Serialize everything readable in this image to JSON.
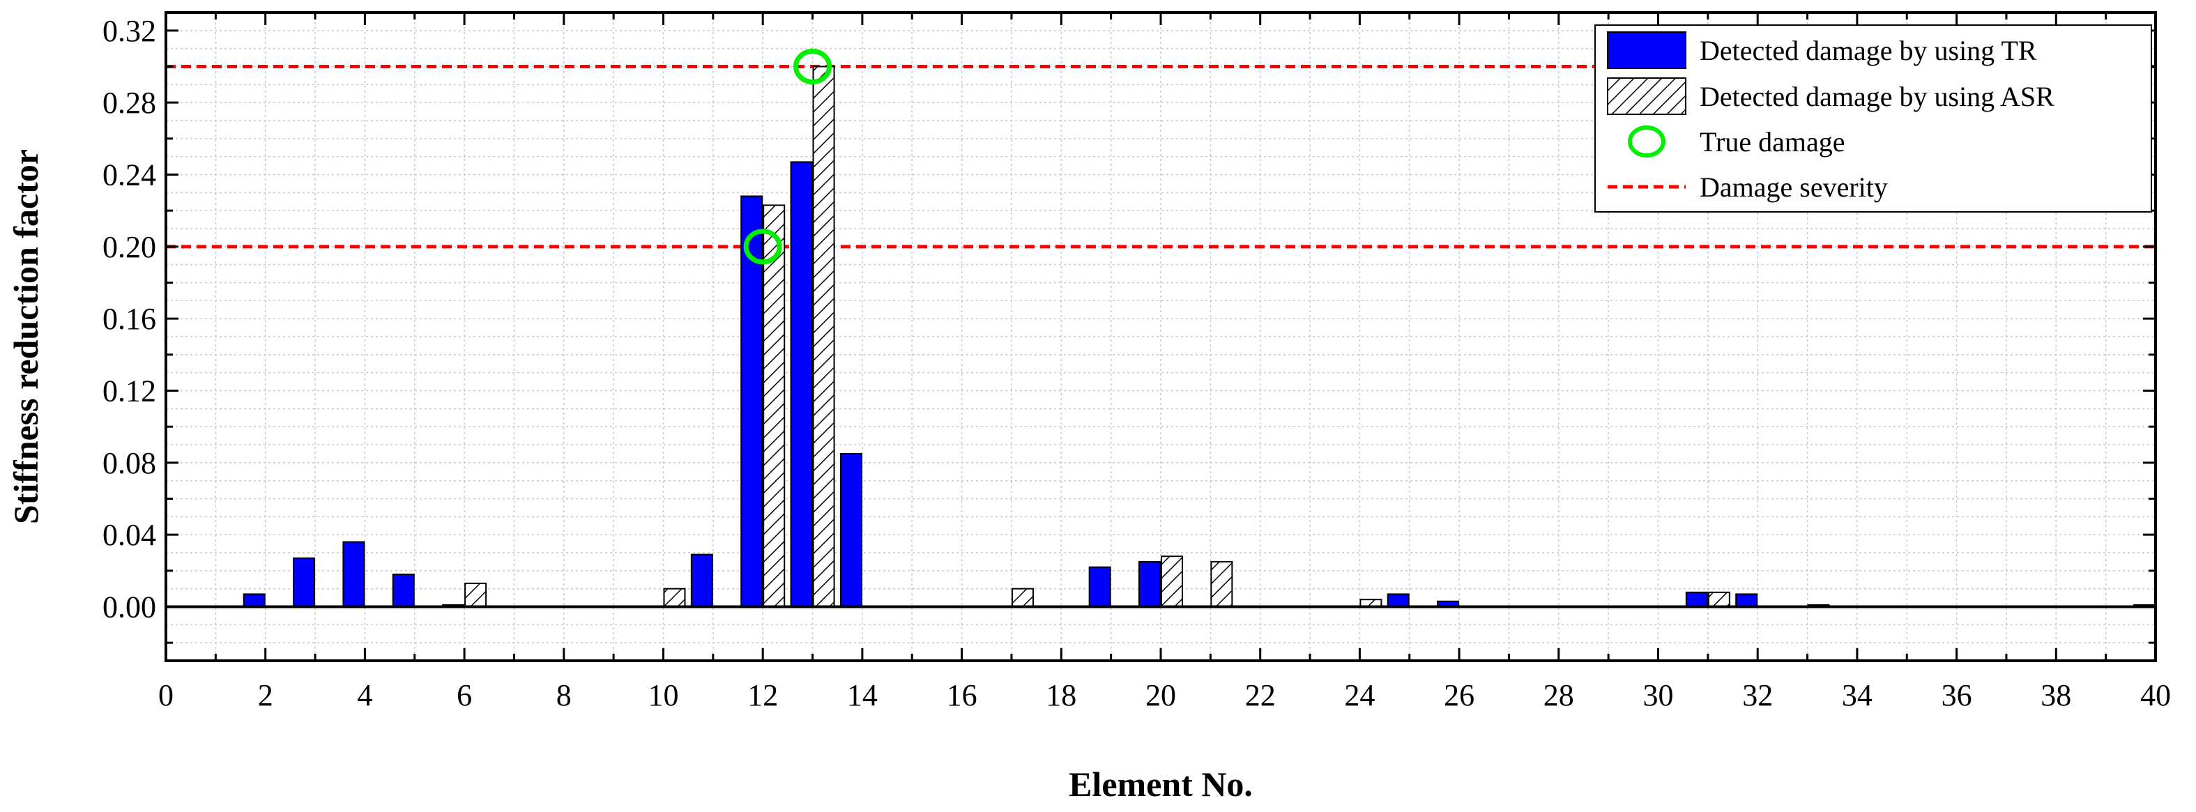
{
  "chart_data": {
    "type": "bar",
    "title": "",
    "xlabel": "Element No.",
    "ylabel": "Stiffness reduction factor",
    "xlim": [
      0,
      40
    ],
    "ylim": [
      -0.03,
      0.33
    ],
    "x_ticks": [
      0,
      2,
      4,
      6,
      8,
      10,
      12,
      14,
      16,
      18,
      20,
      22,
      24,
      26,
      28,
      30,
      32,
      34,
      36,
      38,
      40
    ],
    "y_ticks": [
      "0.00",
      "0.04",
      "0.08",
      "0.12",
      "0.16",
      "0.20",
      "0.24",
      "0.28",
      "0.32"
    ],
    "grid": true,
    "legend_position": "top-right",
    "series": [
      {
        "name": "Detected damage by using TR",
        "style": "solid",
        "color": "#0000ff",
        "x": [
          1,
          2,
          3,
          4,
          5,
          6,
          7,
          8,
          9,
          10,
          11,
          12,
          13,
          14,
          15,
          16,
          17,
          18,
          19,
          20,
          21,
          22,
          23,
          24,
          25,
          26,
          27,
          28,
          29,
          30,
          31,
          32,
          33,
          34,
          35,
          36,
          37,
          38,
          39,
          40
        ],
        "values": [
          0,
          0.007,
          0.027,
          0.036,
          0.018,
          0.001,
          0,
          0,
          0,
          0,
          0.029,
          0.228,
          0.247,
          0.085,
          0,
          0,
          0,
          0,
          0.022,
          0.025,
          0,
          0,
          0,
          0,
          0.007,
          0.003,
          0,
          0,
          0,
          0,
          0.008,
          0.007,
          0,
          0,
          0,
          0,
          0,
          0,
          0,
          0.001
        ]
      },
      {
        "name": "Detected damage by using ASR",
        "style": "hatched",
        "color": "#000000",
        "x": [
          1,
          2,
          3,
          4,
          5,
          6,
          7,
          8,
          9,
          10,
          11,
          12,
          13,
          14,
          15,
          16,
          17,
          18,
          19,
          20,
          21,
          22,
          23,
          24,
          25,
          26,
          27,
          28,
          29,
          30,
          31,
          32,
          33,
          34,
          35,
          36,
          37,
          38,
          39,
          40
        ],
        "values": [
          0,
          0,
          0,
          0,
          0,
          0.013,
          0,
          0,
          0,
          0.01,
          0,
          0.223,
          0.3,
          0,
          0,
          0,
          0.01,
          0,
          0,
          0.028,
          0.025,
          0,
          0,
          0.004,
          0,
          0,
          0,
          0,
          0,
          0,
          0.008,
          0,
          0.001,
          0,
          0,
          0,
          0,
          0,
          0,
          0
        ]
      },
      {
        "name": "True damage",
        "style": "circle-marker",
        "color": "#00ee00",
        "x": [
          12,
          13
        ],
        "values": [
          0.2,
          0.3
        ]
      },
      {
        "name": "Damage severity",
        "style": "dashed-line",
        "color": "#ff0000",
        "values": [
          0.2,
          0.3
        ]
      }
    ]
  }
}
